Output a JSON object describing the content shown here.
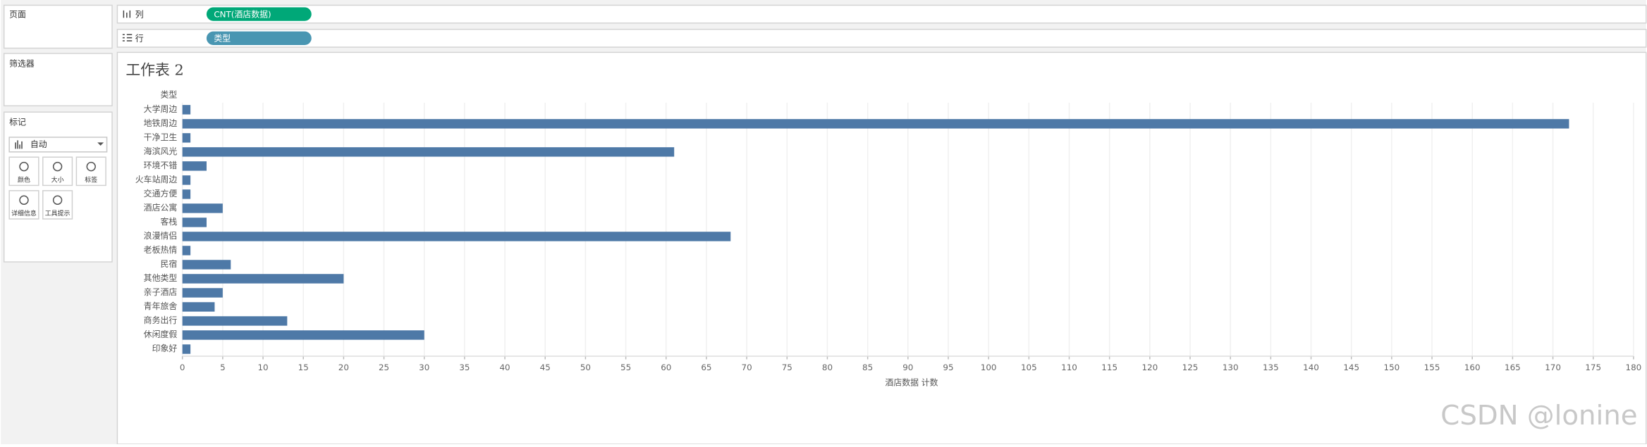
{
  "ui": {
    "pages_label": "页面",
    "columns_label": "列",
    "columns_pill": "CNT(酒店数据)",
    "rows_label": "行",
    "rows_pill": "类型",
    "filters_label": "筛选器",
    "marks_label": "标记",
    "mark_type": "自动",
    "mark_buttons": [
      "颜色",
      "大小",
      "标签",
      "详细信息",
      "工具提示"
    ],
    "watermark": "CSDN @lonine"
  },
  "chart_data": {
    "type": "bar",
    "orientation": "horizontal",
    "title": "工作表 2",
    "y_header": "类型",
    "x_label": "酒店数据 计数",
    "categories": [
      "大学周边",
      "地铁周边",
      "干净卫生",
      "海滨风光",
      "环境不错",
      "火车站周边",
      "交通方便",
      "酒店公寓",
      "客栈",
      "浪漫情侣",
      "老板热情",
      "民宿",
      "其他类型",
      "亲子酒店",
      "青年旅舍",
      "商务出行",
      "休闲度假",
      "印象好"
    ],
    "values": [
      1,
      172,
      1,
      61,
      3,
      1,
      1,
      5,
      3,
      68,
      1,
      6,
      20,
      5,
      4,
      13,
      30,
      1
    ],
    "color": "#4e79a7",
    "xlim": [
      0,
      180
    ],
    "xticks": [
      0,
      5,
      10,
      15,
      20,
      25,
      30,
      35,
      40,
      45,
      50,
      55,
      60,
      65,
      70,
      75,
      80,
      85,
      90,
      95,
      100,
      105,
      110,
      115,
      120,
      125,
      130,
      135,
      140,
      145,
      150,
      155,
      160,
      165,
      170,
      175,
      180
    ],
    "grid": true
  }
}
